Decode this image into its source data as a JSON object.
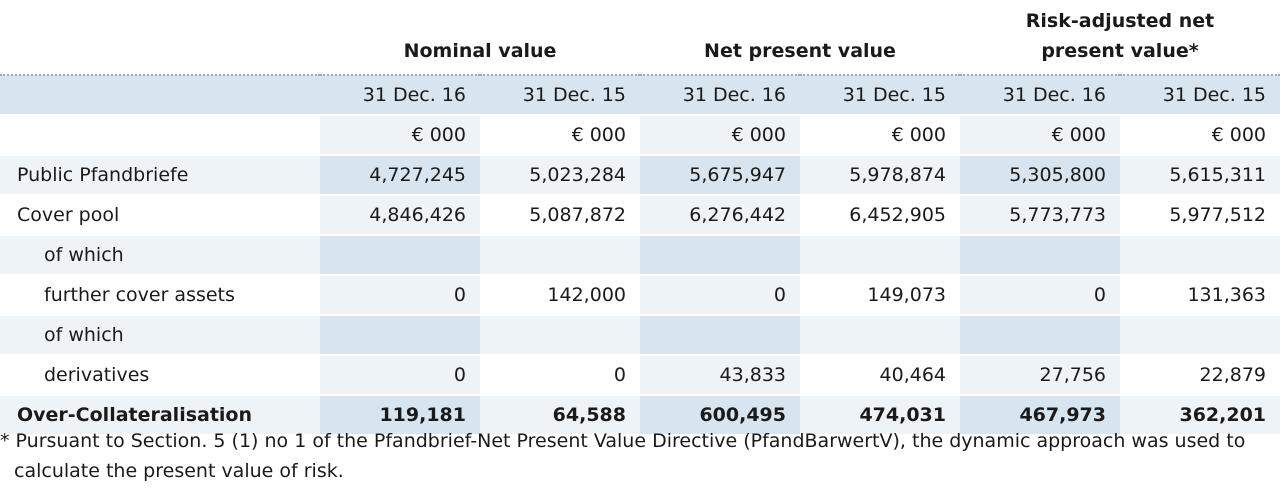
{
  "groups": [
    "Nominal value",
    "Net present value",
    "Risk-adjusted net present value*"
  ],
  "dates": [
    "31 Dec. 16",
    "31 Dec. 15",
    "31 Dec. 16",
    "31 Dec. 15",
    "31 Dec. 16",
    "31 Dec. 15"
  ],
  "unit": "€ 000",
  "rows": [
    {
      "label": "Public Pfandbriefe",
      "values": [
        "4,727,245",
        "5,023,284",
        "5,675,947",
        "5,978,874",
        "5,305,800",
        "5,615,311"
      ]
    },
    {
      "label": "Cover pool",
      "values": [
        "4,846,426",
        "5,087,872",
        "6,276,442",
        "6,452,905",
        "5,773,773",
        "5,977,512"
      ]
    },
    {
      "label": "of which",
      "values": [
        "",
        "",
        "",
        "",
        "",
        ""
      ]
    },
    {
      "label": "further cover assets",
      "values": [
        "0",
        "142,000",
        "0",
        "149,073",
        "0",
        "131,363"
      ]
    },
    {
      "label": "of which",
      "values": [
        "",
        "",
        "",
        "",
        "",
        ""
      ]
    },
    {
      "label": "derivatives",
      "values": [
        "0",
        "0",
        "43,833",
        "40,464",
        "27,756",
        "22,879"
      ]
    },
    {
      "label": "Over-Collateralisation",
      "values": [
        "119,181",
        "64,588",
        "600,495",
        "474,031",
        "467,973",
        "362,201"
      ]
    }
  ],
  "footnote": {
    "line1": "* Pursuant to Section. 5 (1) no 1 of the Pfandbrief-Net Present Value Directive (PfandBarwertV), the dynamic approach was used to",
    "line2": "calculate the present value of risk."
  }
}
